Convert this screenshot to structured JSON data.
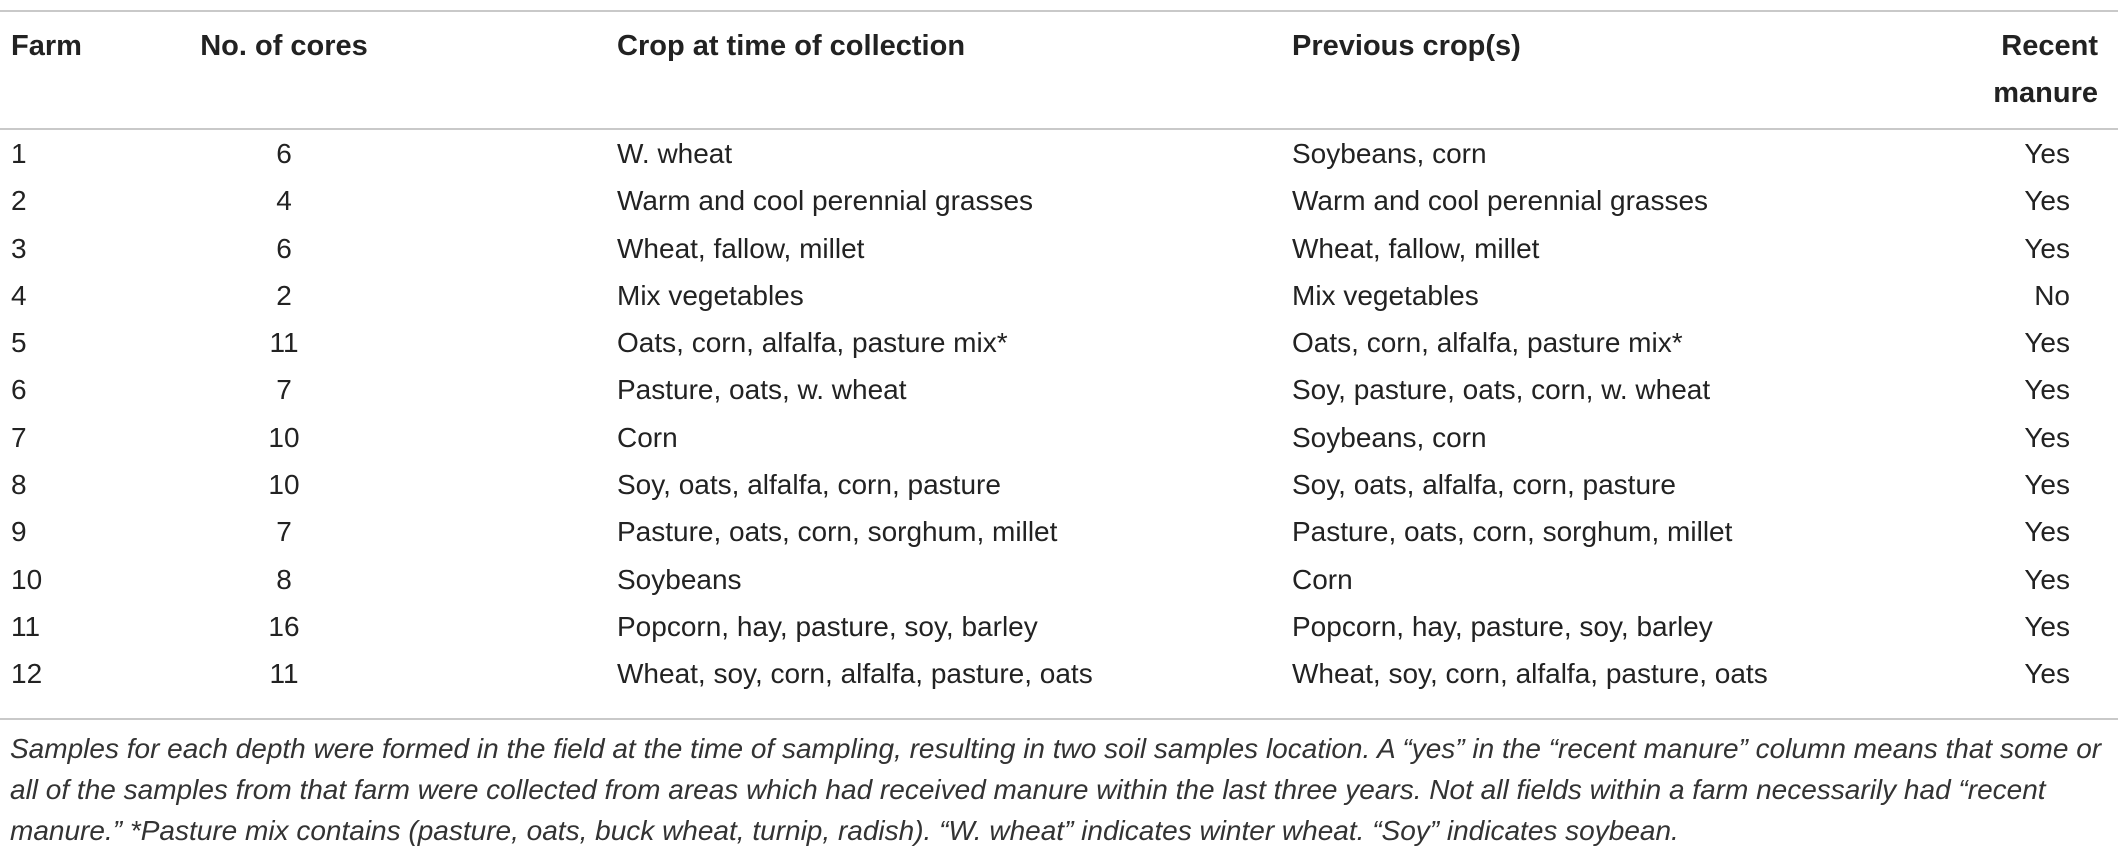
{
  "table": {
    "headers": {
      "farm": "Farm",
      "cores": "No. of cores",
      "crop": "Crop at time of collection",
      "previous": "Previous crop(s)",
      "manure_line1": "Recent",
      "manure_line2": "manure"
    },
    "rows": [
      {
        "farm": "1",
        "cores": "6",
        "crop": "W. wheat",
        "previous": "Soybeans, corn",
        "manure": "Yes"
      },
      {
        "farm": "2",
        "cores": "4",
        "crop": "Warm and cool perennial grasses",
        "previous": "Warm and cool perennial grasses",
        "manure": "Yes"
      },
      {
        "farm": "3",
        "cores": "6",
        "crop": "Wheat, fallow, millet",
        "previous": "Wheat, fallow, millet",
        "manure": "Yes"
      },
      {
        "farm": "4",
        "cores": "2",
        "crop": "Mix vegetables",
        "previous": "Mix vegetables",
        "manure": "No"
      },
      {
        "farm": "5",
        "cores": "11",
        "crop": "Oats, corn, alfalfa, pasture mix*",
        "previous": "Oats, corn, alfalfa, pasture mix*",
        "manure": "Yes"
      },
      {
        "farm": "6",
        "cores": "7",
        "crop": "Pasture, oats, w. wheat",
        "previous": "Soy, pasture, oats, corn, w. wheat",
        "manure": "Yes"
      },
      {
        "farm": "7",
        "cores": "10",
        "crop": "Corn",
        "previous": "Soybeans, corn",
        "manure": "Yes"
      },
      {
        "farm": "8",
        "cores": "10",
        "crop": "Soy, oats, alfalfa, corn, pasture",
        "previous": "Soy, oats, alfalfa, corn, pasture",
        "manure": "Yes"
      },
      {
        "farm": "9",
        "cores": "7",
        "crop": "Pasture, oats, corn, sorghum, millet",
        "previous": "Pasture, oats, corn, sorghum, millet",
        "manure": "Yes"
      },
      {
        "farm": "10",
        "cores": "8",
        "crop": "Soybeans",
        "previous": "Corn",
        "manure": "Yes"
      },
      {
        "farm": "11",
        "cores": "16",
        "crop": "Popcorn, hay, pasture, soy, barley",
        "previous": "Popcorn, hay, pasture, soy, barley",
        "manure": "Yes"
      },
      {
        "farm": "12",
        "cores": "11",
        "crop": "Wheat, soy, corn, alfalfa, pasture, oats",
        "previous": "Wheat, soy, corn, alfalfa, pasture, oats",
        "manure": "Yes"
      }
    ]
  },
  "footnote": "Samples for each depth were formed in the field at the time of sampling, resulting in two soil samples location. A “yes” in the “recent manure” column means that some or all of the samples from that farm were collected from areas which had received manure within the last three years. Not all fields within a farm necessarily had “recent manure.” *Pasture mix contains (pasture, oats, buck wheat, turnip, radish). “W. wheat” indicates winter wheat. “Soy” indicates soybean."
}
